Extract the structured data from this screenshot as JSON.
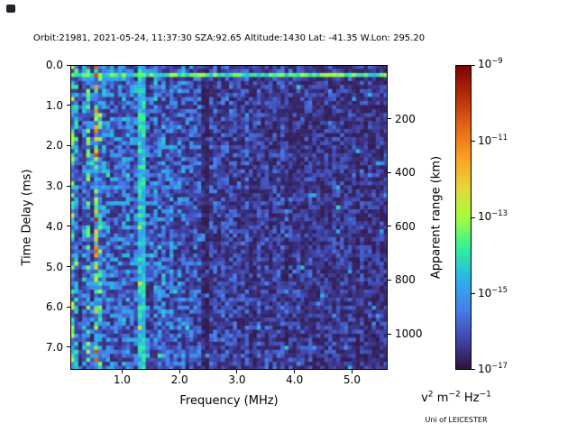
{
  "title": "Orbit:21981, 2021-05-24, 11:37:30 SZA:92.65 Altitude:1430 Lat: -41.35 W.Lon: 295.20",
  "credit": "Uni of LEICESTER",
  "chart_data": {
    "type": "heatmap",
    "description": "Radar-sounder ionogram: echo spectral density versus frequency and time delay, mostly low-amplitude blue/indigo noise with a bright echo line near zero delay, a bright vertical interference line near 1.35 MHz, enhanced signal below 0.6 MHz and a dark attenuation band near 2.4 MHz",
    "xlabel": "Frequency (MHz)",
    "ylabel_left": "Time Delay (ms)",
    "ylabel_right": "Apparent range (km)",
    "x_range_mhz": [
      0.1,
      5.62
    ],
    "x_ticks": [
      1.0,
      2.0,
      3.0,
      4.0,
      5.0
    ],
    "y_range_ms": [
      0.0,
      7.56
    ],
    "y_ticks_ms": [
      0.0,
      1.0,
      2.0,
      3.0,
      4.0,
      5.0,
      6.0,
      7.0
    ],
    "y_axis_inverted": true,
    "right_ticks_km": [
      200,
      400,
      600,
      800,
      1000
    ],
    "range_km_per_ms": 150,
    "colorbar": {
      "scale": "log",
      "min": "1e-17",
      "max": "1e-9",
      "tick_exps": [
        -9,
        -11,
        -13,
        -15,
        -17
      ],
      "units_segments": [
        {
          "text": "v"
        },
        {
          "sup": "2"
        },
        {
          "text": " m"
        },
        {
          "sup": "−2"
        },
        {
          "text": " Hz"
        },
        {
          "sup": "−1"
        }
      ],
      "colormap": "turbo",
      "stops": [
        {
          "v": 0.0,
          "c": "#30123b"
        },
        {
          "v": 0.1,
          "c": "#4147ad"
        },
        {
          "v": 0.2,
          "c": "#4680ee"
        },
        {
          "v": 0.3,
          "c": "#28b5e8"
        },
        {
          "v": 0.4,
          "c": "#31f199"
        },
        {
          "v": 0.5,
          "c": "#a3fd3c"
        },
        {
          "v": 0.6,
          "c": "#e9d539"
        },
        {
          "v": 0.7,
          "c": "#fb9e24"
        },
        {
          "v": 0.8,
          "c": "#e46419"
        },
        {
          "v": 0.9,
          "c": "#b72d07"
        },
        {
          "v": 1.0,
          "c": "#7a0403"
        }
      ]
    },
    "grid": {
      "ncols": 80,
      "nrows": 76,
      "seed": 21981
    },
    "features": [
      {
        "kind": "bright_hline",
        "t_ms": [
          0.18,
          0.32
        ],
        "level": 0.3,
        "jitter": 0.22,
        "note": "strong echo line across all frequencies near zero delay"
      },
      {
        "kind": "bright_vline",
        "f_mhz": [
          1.3,
          1.4
        ],
        "level": 0.22,
        "jitter": 0.2,
        "note": "bright vertical interference line"
      },
      {
        "kind": "bright_region",
        "f_mhz": [
          0.1,
          0.65
        ],
        "gain": 1.5,
        "note": "enhanced low-frequency echoes with vertical streaks"
      },
      {
        "kind": "bright_region",
        "f_mhz": [
          0.65,
          2.36
        ],
        "gain": 1.15,
        "note": "moderately bright mid band"
      },
      {
        "kind": "dark_vband",
        "f_mhz": [
          0.27,
          0.32
        ],
        "scale": 0.3,
        "note": "narrow dark line"
      },
      {
        "kind": "dark_vband",
        "f_mhz": [
          0.44,
          0.49
        ],
        "scale": 0.35,
        "note": "narrow dark line"
      },
      {
        "kind": "dark_vband",
        "f_mhz": [
          2.36,
          2.52
        ],
        "scale": 0.38,
        "note": "dark attenuation band"
      },
      {
        "kind": "dark_region",
        "f_mhz": [
          2.52,
          5.62
        ],
        "scale": 0.8,
        "note": "weaker noisy signal at high frequencies"
      }
    ]
  }
}
